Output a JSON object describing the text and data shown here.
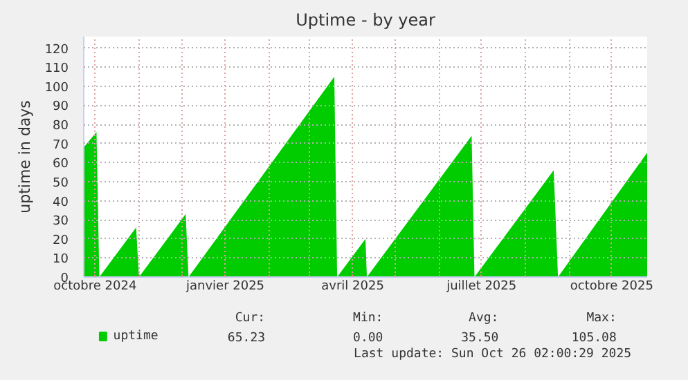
{
  "chart_data": {
    "type": "area",
    "title": "Uptime - by year",
    "ylabel": "uptime in days",
    "x": [
      "2024-09-23",
      "2024-10-02",
      "2024-10-04",
      "2024-10-30",
      "2024-11-01",
      "2024-12-04",
      "2024-12-06",
      "2025-03-19",
      "2025-03-21",
      "2025-04-10",
      "2025-04-11",
      "2025-06-24",
      "2025-06-26",
      "2025-08-21",
      "2025-08-24",
      "2025-10-26"
    ],
    "series": [
      {
        "name": "uptime",
        "color": "#00cc00",
        "values": [
          68,
          76,
          0,
          26,
          0,
          33,
          0,
          105,
          0,
          20,
          0,
          74,
          0,
          56,
          0,
          65.2
        ]
      }
    ],
    "xlim": [
      "2024-09-23",
      "2025-10-26"
    ],
    "xticks": [
      {
        "value": "2024-10-01",
        "label": "octobre 2024"
      },
      {
        "value": "2024-11-01",
        "label": null
      },
      {
        "value": "2024-12-01",
        "label": null
      },
      {
        "value": "2025-01-01",
        "label": "janvier 2025"
      },
      {
        "value": "2025-02-01",
        "label": null
      },
      {
        "value": "2025-03-01",
        "label": null
      },
      {
        "value": "2025-04-01",
        "label": "avril 2025"
      },
      {
        "value": "2025-05-01",
        "label": null
      },
      {
        "value": "2025-06-01",
        "label": null
      },
      {
        "value": "2025-07-01",
        "label": "juillet 2025"
      },
      {
        "value": "2025-08-01",
        "label": null
      },
      {
        "value": "2025-09-01",
        "label": null
      },
      {
        "value": "2025-10-01",
        "label": "octobre 2025"
      }
    ],
    "ylim": [
      0,
      126
    ],
    "yticks": [
      0,
      10,
      20,
      30,
      40,
      50,
      60,
      70,
      80,
      90,
      100,
      110,
      120
    ],
    "grid": true,
    "legend": "bottom",
    "annotations": [
      "Cur:",
      "Min:",
      "Avg:",
      "Max:",
      "65.23",
      "0.00",
      "35.50",
      "105.08",
      "Last update: Sun Oct 26 02:00:29 2025"
    ]
  }
}
